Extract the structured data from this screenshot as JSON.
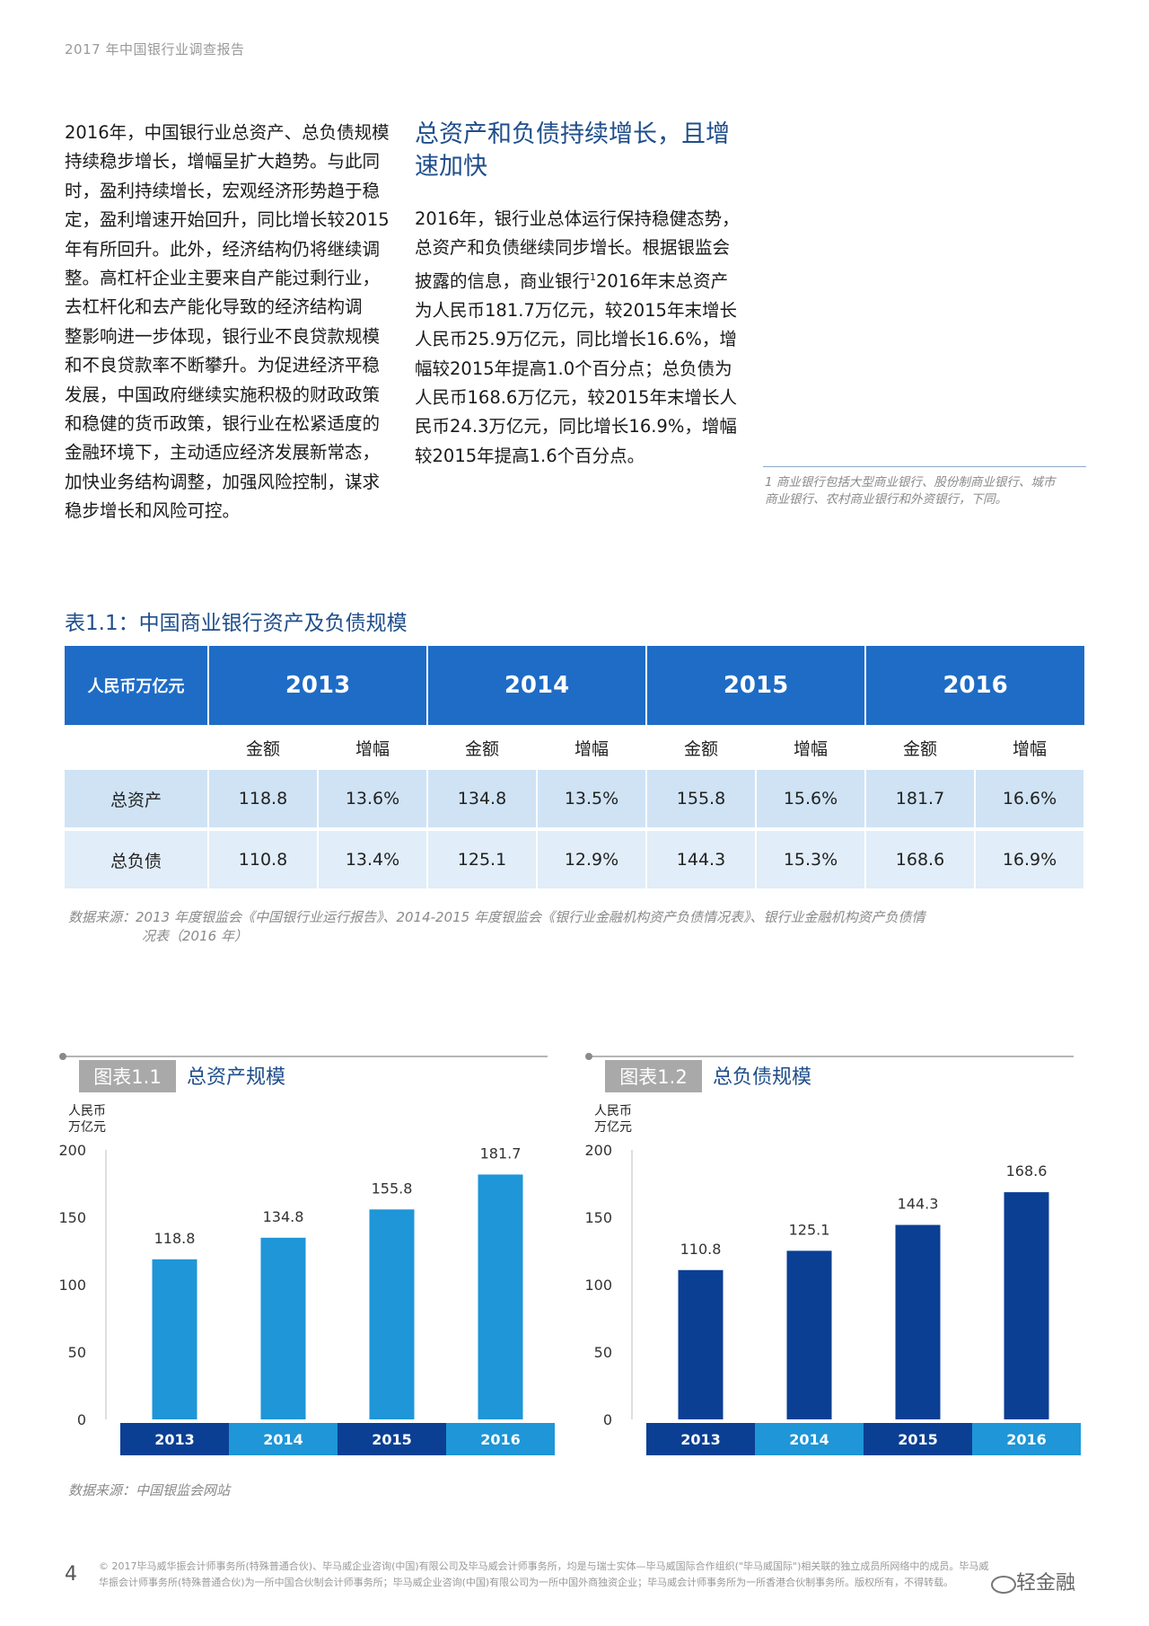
{
  "header": {
    "running_title": "2017 年中国银行业调查报告"
  },
  "left_column": {
    "lines": [
      "2016年，中国银行业总资产、总负债规模",
      "持续稳步增长，增幅呈扩大趋势。与此同",
      "时，盈利持续增长，宏观经济形势趋于稳",
      "定，盈利增速开始回升，同比增长较2015",
      "年有所回升。此外，经济结构仍将继续调",
      "整。高杠杆企业主要来自产能过剩行业，",
      "去杠杆化和去产能化导致的经济结构调",
      "整影响进一步体现，银行业不良贷款规模",
      "和不良贷款率不断攀升。为促进经济平稳",
      "发展，中国政府继续实施积极的财政政策",
      "和稳健的货币政策，银行业在松紧适度的",
      "金融环境下，主动适应经济发展新常态，",
      "加快业务结构调整，加强风险控制，谋求",
      "稳步增长和风险可控。"
    ]
  },
  "right_column": {
    "title_lines": [
      "总资产和负债持续增长，且增",
      "速加快"
    ],
    "lines_before_sup": [
      "2016年，银行业总体运行保持稳健态势，",
      "总资产和负债继续同步增长。根据银监会"
    ],
    "sup_line_start": "披露的信息，商业银行",
    "sup": "1",
    "sup_line_end": "2016年末总资产",
    "lines_after_sup": [
      "为人民币181.7万亿元，较2015年末增长",
      "人民币25.9万亿元，同比增长16.6%，增",
      "幅较2015年提高1.0个百分点；总负债为",
      "人民币168.6万亿元，较2015年末增长人",
      "民币24.3万亿元，同比增长16.9%，增幅",
      "较2015年提高1.6个百分点。"
    ]
  },
  "footnote": {
    "lines": [
      "1 商业银行包括大型商业银行、股份制商业银行、城市",
      "商业银行、农村商业银行和外资银行，下同。"
    ]
  },
  "table": {
    "title": "表1.1：中国商业银行资产及负债规模",
    "unit": "人民币万亿元",
    "years": [
      "2013",
      "2014",
      "2015",
      "2016"
    ],
    "sub_headers": [
      "金额",
      "增幅"
    ],
    "rows": [
      {
        "label": "总资产",
        "cells": [
          "118.8",
          "13.6%",
          "134.8",
          "13.5%",
          "155.8",
          "15.6%",
          "181.7",
          "16.6%"
        ]
      },
      {
        "label": "总负债",
        "cells": [
          "110.8",
          "13.4%",
          "125.1",
          "12.9%",
          "144.3",
          "15.3%",
          "168.6",
          "16.9%"
        ]
      }
    ],
    "source_line1": "数据来源：2013 年度银监会《中国银行业运行报告》、2014-2015 年度银监会《银行业金融机构资产负债情况表》、银行业金融机构资产负债情",
    "source_line2": "况表（2016 年）"
  },
  "chart_data": [
    {
      "type": "bar",
      "tag": "图表1.1",
      "title": "总资产规模",
      "ylabel_lines": [
        "人民币",
        "万亿元"
      ],
      "categories": [
        "2013",
        "2014",
        "2015",
        "2016"
      ],
      "values": [
        118.8,
        134.8,
        155.8,
        181.7
      ],
      "value_labels": [
        "118.8",
        "134.8",
        "155.8",
        "181.7"
      ],
      "yticks": [
        "0",
        "50",
        "100",
        "150",
        "200"
      ],
      "ylim": [
        0,
        200
      ],
      "bar_color": "#1e96d7",
      "grid": false
    },
    {
      "type": "bar",
      "tag": "图表1.2",
      "title": "总负债规模",
      "ylabel_lines": [
        "人民币",
        "万亿元"
      ],
      "categories": [
        "2013",
        "2014",
        "2015",
        "2016"
      ],
      "values": [
        110.8,
        125.1,
        144.3,
        168.6
      ],
      "value_labels": [
        "110.8",
        "125.1",
        "144.3",
        "168.6"
      ],
      "yticks": [
        "0",
        "50",
        "100",
        "150",
        "200"
      ],
      "ylim": [
        0,
        200
      ],
      "bar_color": "#0b3f94",
      "grid": false
    }
  ],
  "chart_source": "数据来源：中国银监会网站",
  "colors": {
    "category_dark": "#0b3f94",
    "category_light": "#1e96d7",
    "tag_bg": "#a9a9a9"
  },
  "page_number": "4",
  "footer": {
    "line1": "© 2017毕马威华振会计师事务所(特殊普通合伙)、毕马威企业咨询(中国)有限公司及毕马威会计师事务所，均是与瑞士实体—毕马威国际合作组织(\"毕马威国际\")相关联的独立成员所网络中的成员。毕马威",
    "line2": "华振会计师事务所(特殊普通合伙)为一所中国合伙制会计师事务所；毕马威企业咨询(中国)有限公司为一所中国外商独资企业；毕马威会计师事务所为一所香港合伙制事务所。版权所有，不得转载。"
  },
  "watermark": "轻金融"
}
